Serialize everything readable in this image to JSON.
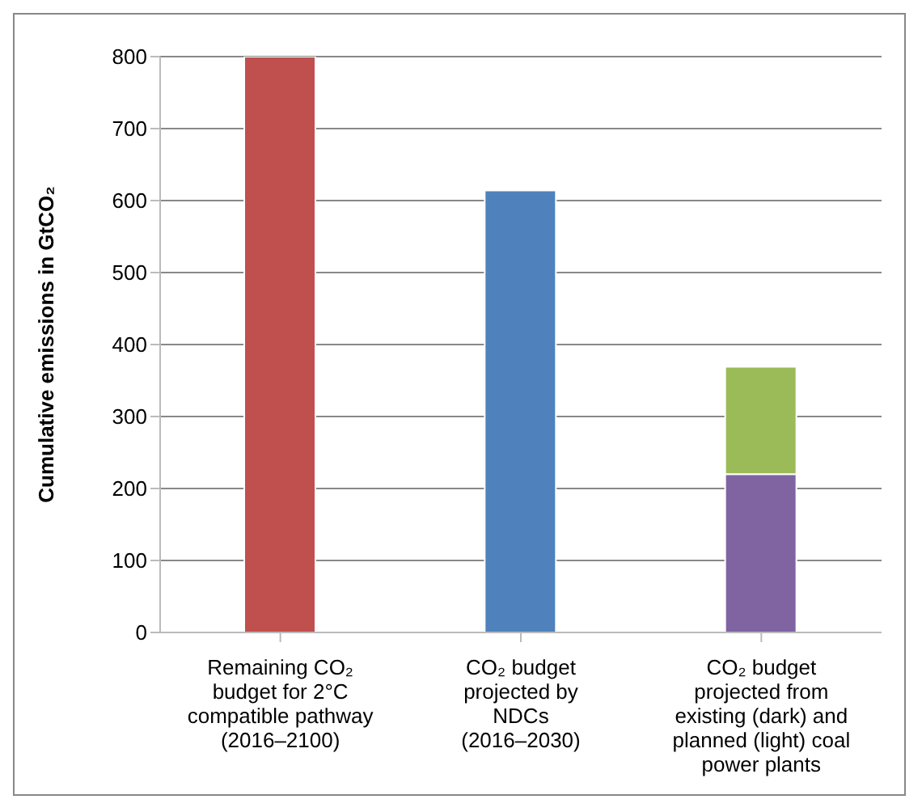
{
  "chart_data": {
    "type": "bar",
    "ylabel": "Cumulative emissions in GtCO₂",
    "categories": [
      "Remaining CO₂\nbudget for 2°C\ncompatible pathway\n(2016–2100)",
      "CO₂ budget\nprojected by\nNDCs\n(2016–2030)",
      "CO₂ budget\nprojected from\nexisting (dark) and\nplanned (light) coal\npower plants"
    ],
    "series": [
      {
        "colors": [
          "#c0504d",
          "#4f81bd",
          "#8064a2"
        ],
        "values": [
          800,
          614,
          220
        ]
      },
      {
        "color": "#9bbb59",
        "values": [
          null,
          null,
          149
        ]
      }
    ],
    "stacked": true,
    "ylim": [
      0,
      800
    ],
    "yticks": [
      0,
      100,
      200,
      300,
      400,
      500,
      600,
      700,
      800
    ],
    "grid": "y"
  }
}
